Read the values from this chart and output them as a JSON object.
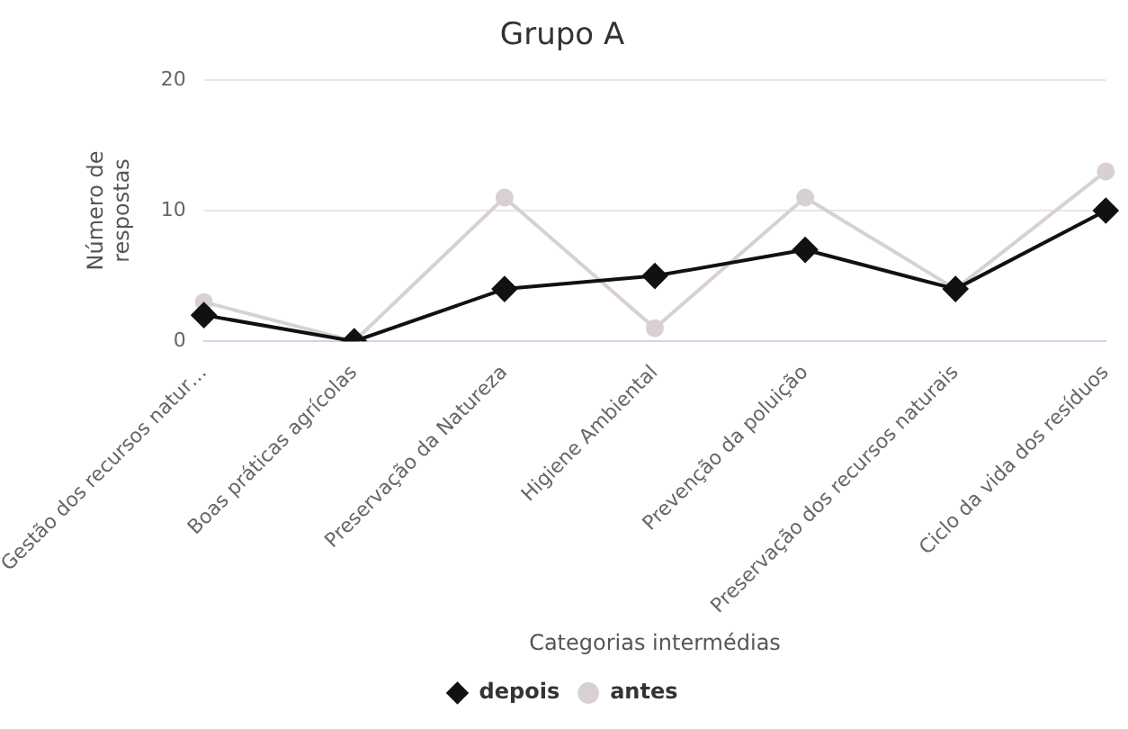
{
  "chart_data": {
    "type": "line",
    "title": "Grupo A",
    "xlabel": "Categorias intermédias",
    "ylabel": "Número de respostas",
    "categories": [
      "Gestão dos recursos natur…",
      "Boas práticas agrícolas",
      "Preservação da Natureza",
      "Higiene Ambiental",
      "Prevenção da poluição",
      "Preservação dos recursos naturais",
      "Ciclo da vida dos resíduos"
    ],
    "series": [
      {
        "name": "antes",
        "color": "#d8d0d4",
        "marker": "circle",
        "values": [
          3,
          0,
          11,
          1,
          11,
          4,
          13
        ]
      },
      {
        "name": "depois",
        "color": "#111111",
        "marker": "diamond",
        "values": [
          2,
          0,
          4,
          5,
          7,
          4,
          10
        ]
      }
    ],
    "ylim": [
      0,
      20
    ],
    "yticks": [
      0,
      10,
      20
    ],
    "grid": "y",
    "legend": "bottom",
    "line_style": "solid"
  }
}
